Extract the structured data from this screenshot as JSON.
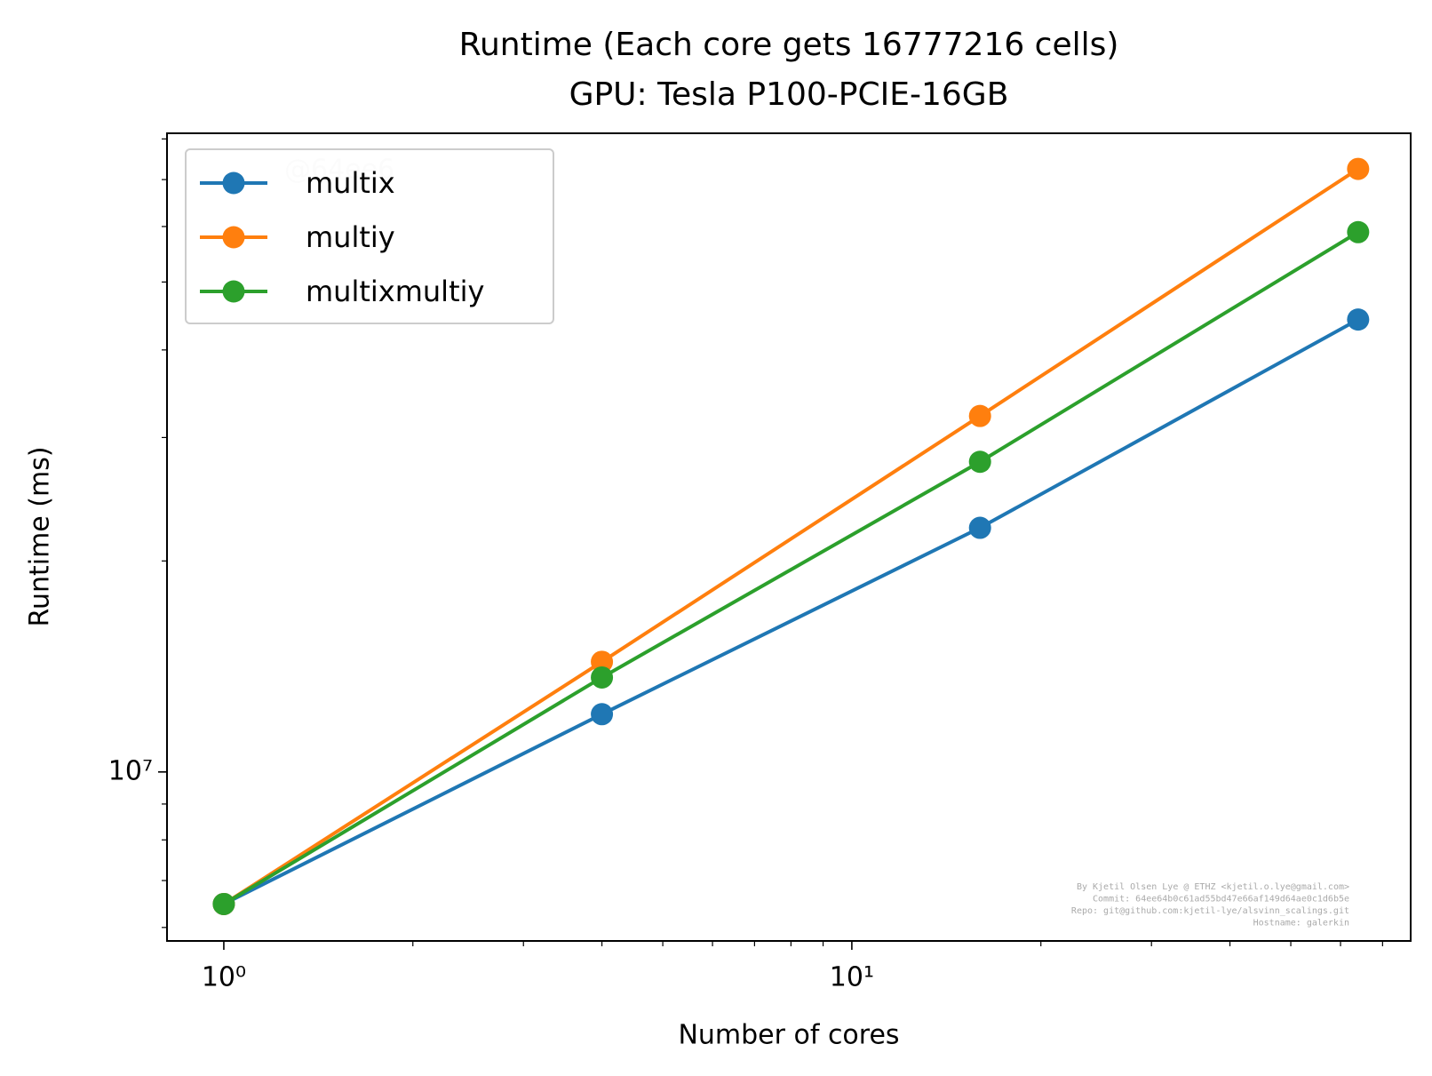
{
  "chart_data": {
    "type": "line",
    "title": "Runtime (Each core gets 16777216 cells)",
    "subtitle": "GPU: Tesla P100-PCIE-16GB",
    "x_label": "Number of cores",
    "y_label": "Runtime (ms)",
    "x": [
      1,
      4,
      16,
      64
    ],
    "series": [
      {
        "name": "multix",
        "color": "#1f77b4",
        "values": [
          6480000,
          12090000,
          22300000,
          44200000
        ]
      },
      {
        "name": "multiy",
        "color": "#ff7f0e",
        "values": [
          6480000,
          14360000,
          32200000,
          72500000
        ]
      },
      {
        "name": "multixmultiy",
        "color": "#2ca02c",
        "values": [
          6480000,
          13640000,
          27700000,
          58900000
        ]
      }
    ],
    "x_log": true,
    "y_log": true,
    "xlim": [
      0.812,
      77.6
    ],
    "ylim": [
      5740000,
      81500000
    ],
    "xticks": [
      {
        "value": 1,
        "label": "10⁰"
      },
      {
        "value": 10,
        "label": "10¹"
      }
    ],
    "yticks": [
      {
        "value": 10000000,
        "label": "10⁷"
      }
    ],
    "x_minor_ticks": [
      2,
      3,
      4,
      5,
      6,
      7,
      8,
      9,
      20,
      30,
      40,
      50,
      60,
      70
    ],
    "y_minor_ticks": [
      6000000,
      7000000,
      8000000,
      9000000,
      20000000,
      30000000,
      40000000,
      50000000,
      60000000,
      70000000,
      80000000
    ],
    "legend": "upper left",
    "watermark": "@64ee6",
    "footer": [
      "By Kjetil Olsen Lye @ ETHZ <kjetil.o.lye@gmail.com>",
      "Commit: 64ee64b0c61ad55bd47e66af149d64ae0c1d6b5e",
      "Repo: git@github.com:kjetil-lye/alsvinn_scalings.git",
      "Hostname: galerkin"
    ]
  }
}
